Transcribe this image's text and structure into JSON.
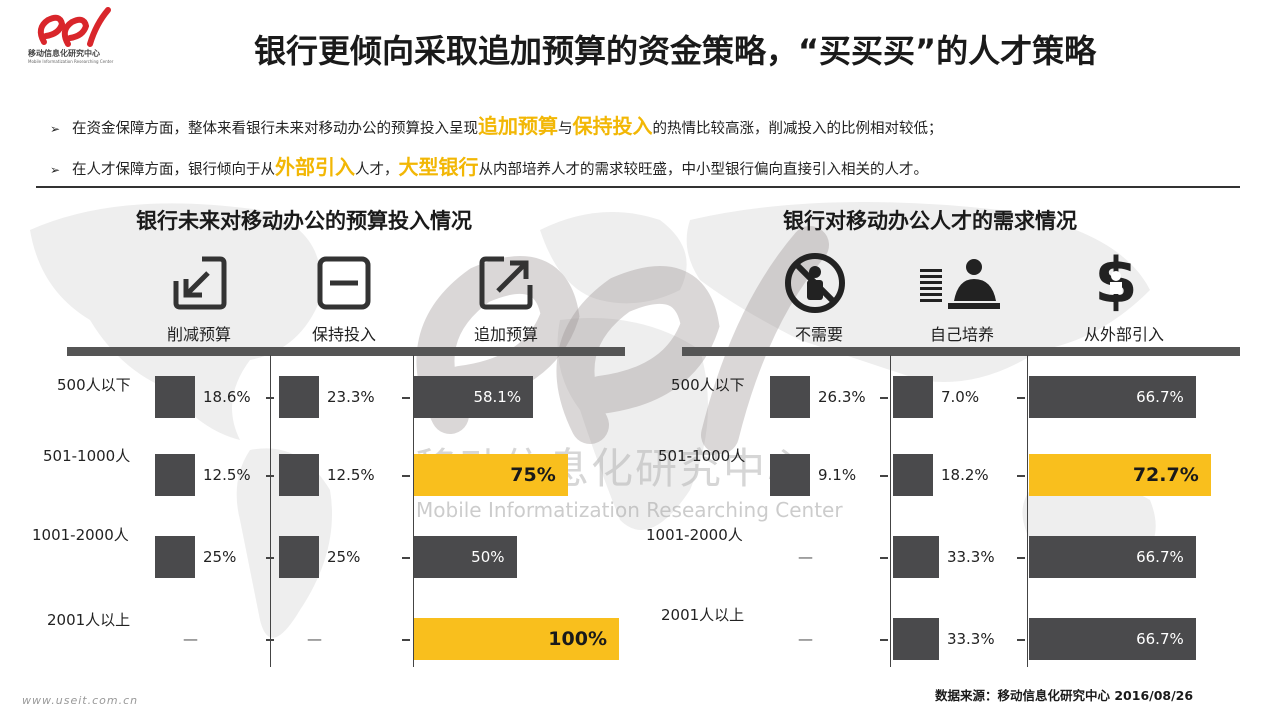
{
  "header": {
    "logo_text": "移动信息化研究中心",
    "logo_subtext": "Mobile Informatization Researching Center",
    "title": "银行更倾向采取追加预算的资金策略，“买买买”的人才策略"
  },
  "bullets": [
    {
      "pre": "在资金保障方面，整体来看银行未来对移动办公的预算投入呈现",
      "hl1": "追加预算",
      "mid": "与",
      "hl2": "保持投入",
      "post": "的热情比较高涨，削减投入的比例相对较低；"
    },
    {
      "pre": "在人才保障方面，银行倾向于从",
      "hl1": "外部引入",
      "mid": "人才，",
      "hl2": "大型银行",
      "post": "从内部培养人才的需求较旺盛，中小型银行偏向直接引入相关的人才。"
    }
  ],
  "watermark": {
    "cn": "移动信息化研究中心",
    "en": "Mobile  Informatization Researching Center"
  },
  "footer": {
    "source": "数据来源：移动信息化研究中心 2016/08/26",
    "url": "www.useit.com.cn"
  },
  "colors": {
    "dark_bar": "#4a4a4c",
    "highlight_bar": "#f9bf1d",
    "highlight_text": "#f2b705"
  },
  "chart_data": [
    {
      "type": "bar",
      "title": "银行未来对移动办公的预算投入情况",
      "categories": [
        "500人以下",
        "501-1000人",
        "1001-2000人",
        "2001人以上"
      ],
      "series": [
        {
          "name": "削减预算",
          "icon": "arrow-down-left-box-icon",
          "values": [
            18.6,
            12.5,
            25,
            null
          ],
          "labels": [
            "18.6%",
            "12.5%",
            "25%",
            "—"
          ]
        },
        {
          "name": "保持投入",
          "icon": "minus-box-icon",
          "values": [
            23.3,
            12.5,
            25,
            null
          ],
          "labels": [
            "23.3%",
            "12.5%",
            "25%",
            "—"
          ]
        },
        {
          "name": "追加预算",
          "icon": "arrow-up-right-box-icon",
          "values": [
            58.1,
            75,
            50,
            100
          ],
          "labels": [
            "58.1%",
            "75%",
            "50%",
            "100%"
          ],
          "highlight": [
            false,
            true,
            false,
            true
          ]
        }
      ],
      "xlim": [
        0,
        100
      ]
    },
    {
      "type": "bar",
      "title": "银行对移动办公人才的需求情况",
      "categories": [
        "500人以下",
        "501-1000人",
        "1001-2000人",
        "2001人以上"
      ],
      "series": [
        {
          "name": "不需要",
          "icon": "no-person-icon",
          "values": [
            26.3,
            9.1,
            null,
            null
          ],
          "labels": [
            "26.3%",
            "9.1%",
            "—",
            "—"
          ]
        },
        {
          "name": "自己培养",
          "icon": "training-person-icon",
          "values": [
            7.0,
            18.2,
            33.3,
            33.3
          ],
          "labels": [
            "7.0%",
            "18.2%",
            "33.3%",
            "33.3%"
          ]
        },
        {
          "name": "从外部引入",
          "icon": "dollar-person-icon",
          "values": [
            66.7,
            72.7,
            66.7,
            66.7
          ],
          "labels": [
            "66.7%",
            "72.7%",
            "66.7%",
            "66.7%"
          ],
          "highlight": [
            false,
            true,
            false,
            false
          ]
        }
      ],
      "xlim": [
        0,
        100
      ]
    }
  ]
}
